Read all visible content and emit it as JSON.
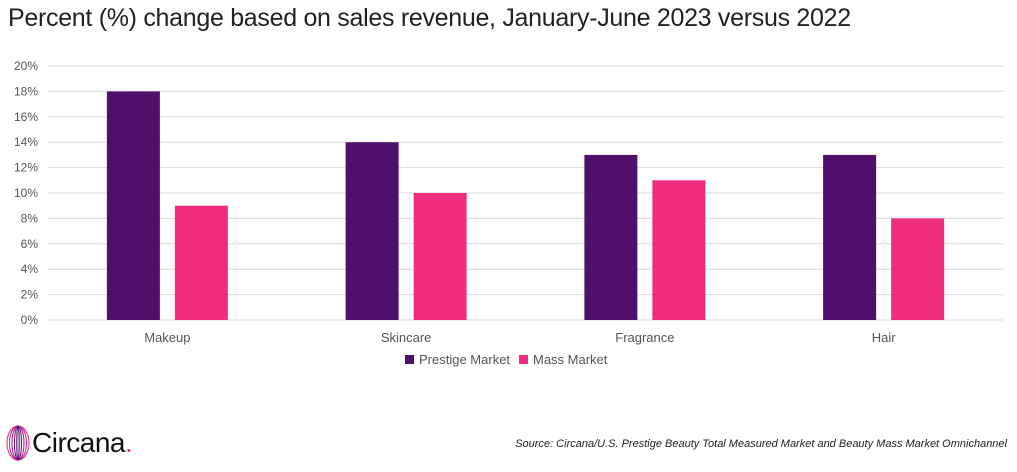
{
  "colors": {
    "prestige": "#4f0f6b",
    "mass": "#ef2c7f",
    "grid": "#d9d9d9",
    "axis_text": "#555555",
    "brand_accent": "#ef2c85"
  },
  "chart_data": {
    "type": "bar",
    "title": "Percent (%) change based on sales revenue, January-June 2023 versus 2022",
    "categories": [
      "Makeup",
      "Skincare",
      "Fragrance",
      "Hair"
    ],
    "series": [
      {
        "name": "Prestige Market",
        "values": [
          18,
          14,
          13,
          13
        ]
      },
      {
        "name": "Mass Market",
        "values": [
          9,
          10,
          11,
          8
        ]
      }
    ],
    "ylim": [
      0,
      20
    ],
    "ytick_step": 2,
    "ytick_suffix": "%",
    "xlabel": "",
    "ylabel": "",
    "grid": true,
    "legend_position": "bottom-center"
  },
  "footer": {
    "brand": "Circana",
    "brand_dot": ".",
    "source": "Source: Circana/U.S. Prestige Beauty Total Measured Market and Beauty Mass Market Omnichannel"
  }
}
